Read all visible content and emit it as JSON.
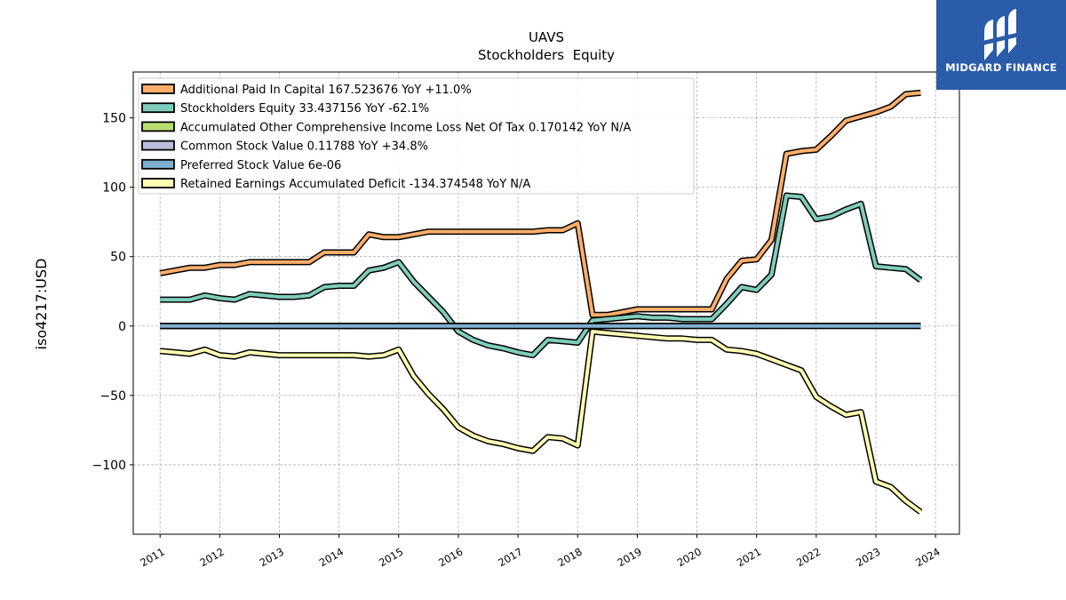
{
  "brand": {
    "name": "MIDGARD FINANCE",
    "background": "#2a5caa"
  },
  "chart_data": {
    "type": "line",
    "title": "UAVS",
    "subtitle": "Stockholders  Equity",
    "ylabel": "iso4217:USD",
    "xlabel": "",
    "xlim": [
      2010.55,
      2024.4
    ],
    "ylim": [
      -150,
      183
    ],
    "x_ticks": [
      2011,
      2012,
      2013,
      2014,
      2015,
      2016,
      2017,
      2018,
      2019,
      2020,
      2021,
      2022,
      2023,
      2024
    ],
    "x_tick_labels": [
      "2011",
      "2012",
      "2013",
      "2014",
      "2015",
      "2016",
      "2017",
      "2018",
      "2019",
      "2020",
      "2021",
      "2022",
      "2023",
      "2024"
    ],
    "y_ticks": [
      -100,
      -50,
      0,
      50,
      100,
      150
    ],
    "y_tick_labels": [
      "−100",
      "−50",
      "0",
      "50",
      "100",
      "150"
    ],
    "grid": true,
    "legend_position": "top-left",
    "series": [
      {
        "name": "Additional Paid In Capital",
        "legend": "Additional Paid In Capital  167.523676 YoY +11.0%",
        "color": "#fdae6b",
        "x": [
          2011.0,
          2011.25,
          2011.5,
          2011.75,
          2012.0,
          2012.25,
          2012.5,
          2012.75,
          2013.0,
          2013.25,
          2013.5,
          2013.75,
          2014.0,
          2014.25,
          2014.5,
          2014.75,
          2015.0,
          2015.25,
          2015.5,
          2015.75,
          2016.0,
          2016.25,
          2016.5,
          2016.75,
          2017.0,
          2017.25,
          2017.5,
          2017.75,
          2018.0,
          2018.25,
          2018.5,
          2018.75,
          2019.0,
          2019.25,
          2019.5,
          2019.75,
          2020.0,
          2020.25,
          2020.5,
          2020.75,
          2021.0,
          2021.25,
          2021.5,
          2021.75,
          2022.0,
          2022.25,
          2022.5,
          2022.75,
          2023.0,
          2023.25,
          2023.5,
          2023.75
        ],
        "y": [
          38,
          40,
          42,
          42,
          44,
          44,
          46,
          46,
          46,
          46,
          46,
          53,
          53,
          53,
          66,
          64,
          64,
          66,
          68,
          68,
          68,
          68,
          68,
          68,
          68,
          68,
          69,
          69,
          74,
          8,
          8,
          10,
          12,
          12,
          12,
          12,
          12,
          12,
          34,
          47,
          48,
          62,
          124,
          126,
          127,
          137,
          148,
          151,
          154,
          158,
          167,
          168
        ]
      },
      {
        "name": "Stockholders Equity",
        "legend": "Stockholders Equity  33.437156 YoY -62.1%",
        "color": "#7fcdbb",
        "x": [
          2011.0,
          2011.25,
          2011.5,
          2011.75,
          2012.0,
          2012.25,
          2012.5,
          2012.75,
          2013.0,
          2013.25,
          2013.5,
          2013.75,
          2014.0,
          2014.25,
          2014.5,
          2014.75,
          2015.0,
          2015.25,
          2015.5,
          2015.75,
          2016.0,
          2016.25,
          2016.5,
          2016.75,
          2017.0,
          2017.25,
          2017.5,
          2017.75,
          2018.0,
          2018.25,
          2018.5,
          2018.75,
          2019.0,
          2019.25,
          2019.5,
          2019.75,
          2020.0,
          2020.25,
          2020.5,
          2020.75,
          2021.0,
          2021.25,
          2021.5,
          2021.75,
          2022.0,
          2022.25,
          2022.5,
          2022.75,
          2023.0,
          2023.25,
          2023.5,
          2023.75
        ],
        "y": [
          19,
          19,
          19,
          22,
          20,
          19,
          23,
          22,
          21,
          21,
          22,
          28,
          29,
          29,
          40,
          42,
          46,
          32,
          21,
          10,
          -4,
          -10,
          -14,
          -16,
          -19,
          -21,
          -10,
          -11,
          -12,
          4,
          5,
          6,
          7,
          6,
          6,
          5,
          5,
          5,
          16,
          28,
          26,
          37,
          94,
          93,
          77,
          79,
          84,
          88,
          43,
          42,
          41,
          33
        ]
      },
      {
        "name": "Accumulated Other Comprehensive Income Loss Net Of Tax",
        "legend": "Accumulated Other Comprehensive Income Loss Net Of Tax  0.170142 YoY N/A",
        "color": "#b8de6f",
        "x": [
          2011.0,
          2023.75
        ],
        "y": [
          0,
          0.170142
        ]
      },
      {
        "name": "Common Stock Value",
        "legend": "Common Stock Value  0.11788 YoY +34.8%",
        "color": "#bcbddc",
        "x": [
          2011.0,
          2023.75
        ],
        "y": [
          0.05,
          0.11788
        ]
      },
      {
        "name": "Preferred Stock Value",
        "legend": "Preferred Stock Value  6e-06",
        "color": "#7fb0d0",
        "x": [
          2011.0,
          2023.75
        ],
        "y": [
          0,
          6e-06
        ]
      },
      {
        "name": "Retained Earnings Accumulated Deficit",
        "legend": "Retained Earnings Accumulated Deficit  -134.374548 YoY N/A",
        "color": "#ffffb3",
        "x": [
          2011.0,
          2011.25,
          2011.5,
          2011.75,
          2012.0,
          2012.25,
          2012.5,
          2012.75,
          2013.0,
          2013.25,
          2013.5,
          2013.75,
          2014.0,
          2014.25,
          2014.5,
          2014.75,
          2015.0,
          2015.25,
          2015.5,
          2015.75,
          2016.0,
          2016.25,
          2016.5,
          2016.75,
          2017.0,
          2017.25,
          2017.5,
          2017.75,
          2018.0,
          2018.25,
          2018.5,
          2018.75,
          2019.0,
          2019.25,
          2019.5,
          2019.75,
          2020.0,
          2020.25,
          2020.5,
          2020.75,
          2021.0,
          2021.25,
          2021.5,
          2021.75,
          2022.0,
          2022.25,
          2022.5,
          2022.75,
          2023.0,
          2023.25,
          2023.5,
          2023.75
        ],
        "y": [
          -18,
          -19,
          -20,
          -17,
          -21,
          -22,
          -19,
          -20,
          -21,
          -21,
          -21,
          -21,
          -21,
          -21,
          -22,
          -21,
          -17,
          -36,
          -49,
          -60,
          -73,
          -79,
          -83,
          -85,
          -88,
          -90,
          -80,
          -81,
          -86,
          -4,
          -5,
          -6,
          -7,
          -8,
          -9,
          -9,
          -10,
          -10,
          -17,
          -18,
          -20,
          -24,
          -28,
          -32,
          -51,
          -58,
          -64,
          -62,
          -112,
          -116,
          -126,
          -134
        ]
      }
    ]
  }
}
